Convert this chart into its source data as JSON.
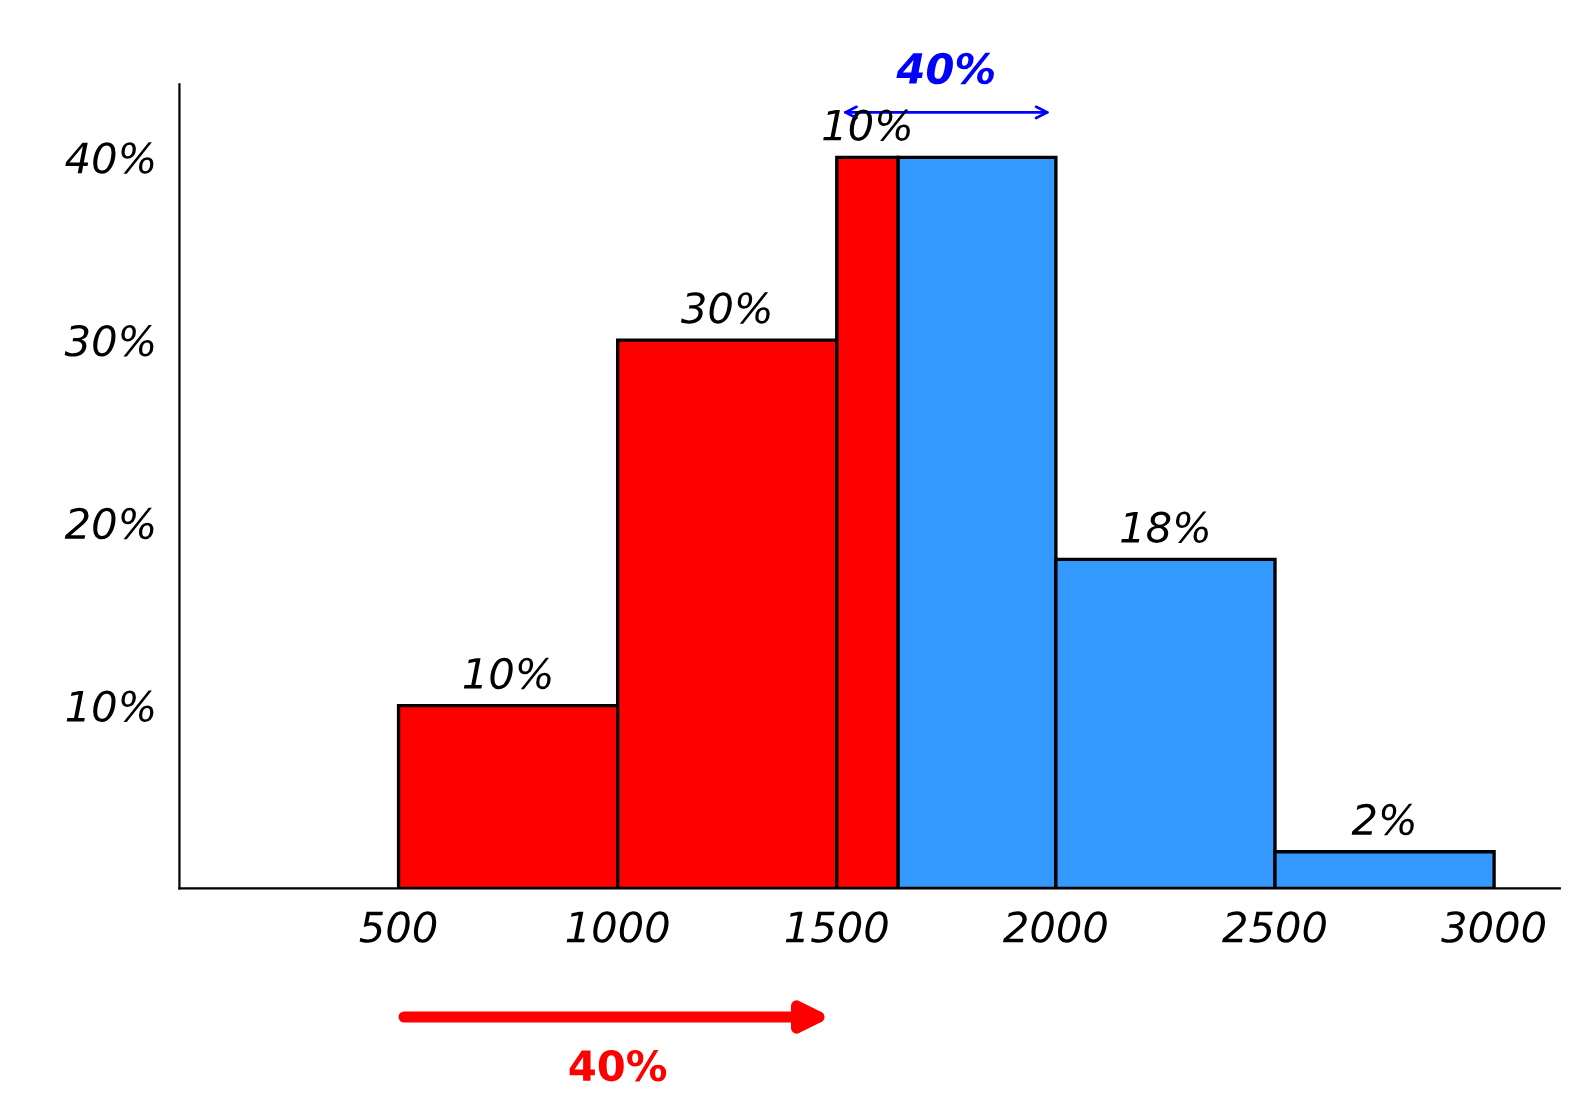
{
  "chart_data": {
    "type": "histogram",
    "bins": [
      500,
      1000,
      1500,
      1640,
      2000,
      2500,
      3000
    ],
    "values": [
      10,
      30,
      40,
      40,
      18,
      2
    ],
    "colors": [
      "#ff0000",
      "#ff0000",
      "#ff0000",
      "#3399ff",
      "#3399ff",
      "#3399ff"
    ],
    "value_labels": [
      "10%",
      "30%",
      null,
      null,
      "18%",
      "2%"
    ],
    "xlim": [
      0,
      3150
    ],
    "xticks": [
      500,
      1000,
      1500,
      2000,
      2500,
      3000
    ],
    "ylim": [
      0,
      44
    ],
    "yticks": [
      {
        "value": 10,
        "label": "10%"
      },
      {
        "value": 20,
        "label": "20%"
      },
      {
        "value": 30,
        "label": "30%"
      },
      {
        "value": 40,
        "label": "40%"
      }
    ],
    "annotations": [
      "40%",
      "40%",
      {
        "text": "10%",
        "x": 1570,
        "y": 40
      }
    ],
    "grid": false,
    "legend": false
  }
}
